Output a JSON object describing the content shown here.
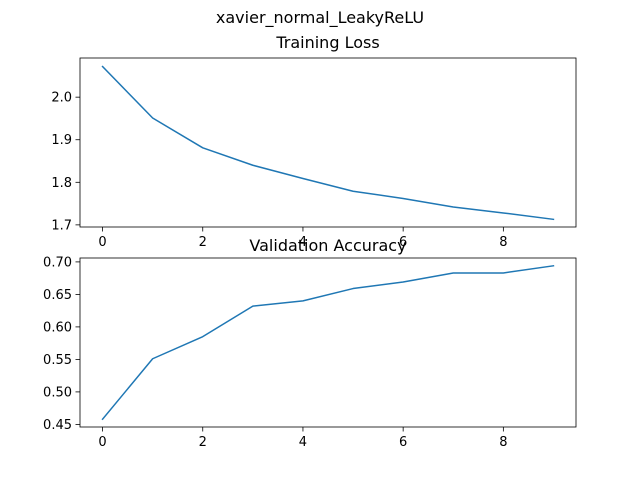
{
  "figure": {
    "suptitle": "xavier_normal_LeakyReLU"
  },
  "chart_data": [
    {
      "type": "line",
      "title": "Training Loss",
      "xlabel": "",
      "ylabel": "",
      "x": [
        0,
        1,
        2,
        3,
        4,
        5,
        6,
        7,
        8,
        9
      ],
      "series": [
        {
          "values": [
            2.072,
            1.951,
            1.881,
            1.84,
            1.809,
            1.779,
            1.762,
            1.742,
            1.728,
            1.713
          ],
          "color": "#1f77b4"
        }
      ],
      "xlim": [
        -0.45,
        9.45
      ],
      "ylim": [
        1.695,
        2.092
      ],
      "xticks": [
        0,
        2,
        4,
        6,
        8
      ],
      "xtick_labels": [
        "0",
        "2",
        "4",
        "6",
        "8"
      ],
      "yticks": [
        1.7,
        1.8,
        1.9,
        2.0
      ],
      "ytick_labels": [
        "1.7",
        "1.8",
        "1.9",
        "2.0"
      ],
      "grid": false,
      "legend": "none"
    },
    {
      "type": "line",
      "title": "Validation Accuracy",
      "xlabel": "",
      "ylabel": "",
      "x": [
        0,
        1,
        2,
        3,
        4,
        5,
        6,
        7,
        8,
        9
      ],
      "series": [
        {
          "values": [
            0.458,
            0.551,
            0.585,
            0.632,
            0.64,
            0.659,
            0.669,
            0.683,
            0.683,
            0.694
          ],
          "color": "#1f77b4"
        }
      ],
      "xlim": [
        -0.45,
        9.45
      ],
      "ylim": [
        0.446,
        0.706
      ],
      "xticks": [
        0,
        2,
        4,
        6,
        8
      ],
      "xtick_labels": [
        "0",
        "2",
        "4",
        "6",
        "8"
      ],
      "yticks": [
        0.45,
        0.5,
        0.55,
        0.6,
        0.65,
        0.7
      ],
      "ytick_labels": [
        "0.45",
        "0.50",
        "0.55",
        "0.60",
        "0.65",
        "0.70"
      ],
      "grid": false,
      "legend": "none"
    }
  ]
}
